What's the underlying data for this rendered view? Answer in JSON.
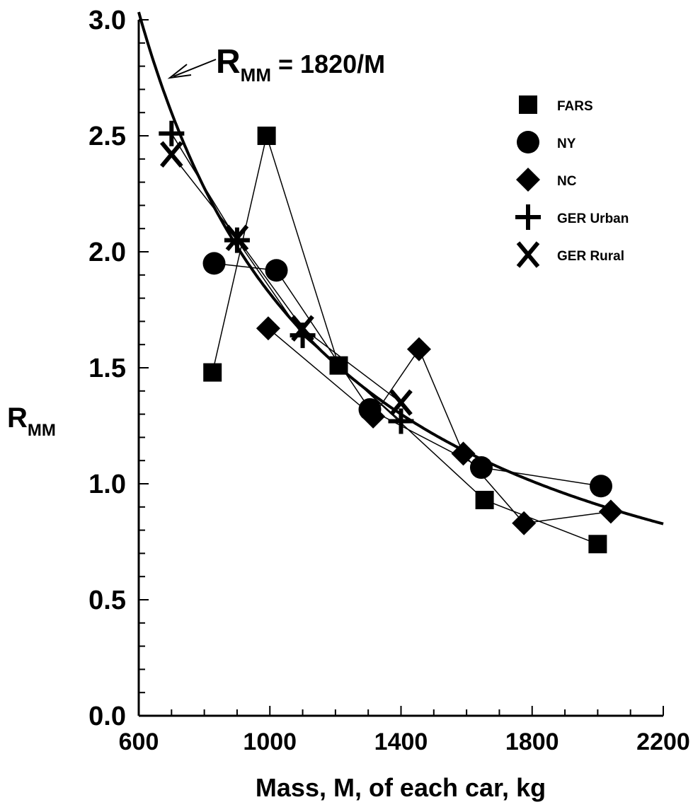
{
  "chart_data": {
    "type": "scatter",
    "xlabel": "Mass, M, of each car, kg",
    "ylabel": "R",
    "ylabel_sub": "MM",
    "xlim": [
      600,
      2200
    ],
    "ylim": [
      0.0,
      3.0
    ],
    "x_ticks": [
      "600",
      "1000",
      "1400",
      "1800",
      "2200"
    ],
    "y_ticks": [
      "0.0",
      "0.5",
      "1.0",
      "1.5",
      "2.0",
      "2.5",
      "3.0"
    ],
    "grid": false,
    "legend_position": "top-right",
    "curve": {
      "equation_prefix": "R",
      "equation_sub": "MM",
      "equation_rest": " = 1820/M",
      "numerator": 1820
    },
    "series": [
      {
        "name": "FARS",
        "marker": "square",
        "points": [
          [
            825,
            1.48
          ],
          [
            990,
            2.5
          ],
          [
            1210,
            1.51
          ],
          [
            1655,
            0.93
          ],
          [
            2000,
            0.74
          ]
        ]
      },
      {
        "name": "NY",
        "marker": "circle",
        "points": [
          [
            830,
            1.95
          ],
          [
            1020,
            1.92
          ],
          [
            1305,
            1.32
          ],
          [
            1645,
            1.07
          ],
          [
            2010,
            0.99
          ]
        ]
      },
      {
        "name": "NC",
        "marker": "diamond",
        "points": [
          [
            995,
            1.67
          ],
          [
            1315,
            1.29
          ],
          [
            1455,
            1.58
          ],
          [
            1590,
            1.13
          ],
          [
            1775,
            0.83
          ],
          [
            2040,
            0.88
          ]
        ]
      },
      {
        "name": "GER Urban",
        "marker": "plus",
        "points": [
          [
            700,
            2.51
          ],
          [
            900,
            2.05
          ],
          [
            1100,
            1.64
          ],
          [
            1400,
            1.27
          ]
        ]
      },
      {
        "name": "GER Rural",
        "marker": "x",
        "points": [
          [
            700,
            2.42
          ],
          [
            900,
            2.06
          ],
          [
            1100,
            1.67
          ],
          [
            1400,
            1.35
          ]
        ]
      }
    ]
  }
}
